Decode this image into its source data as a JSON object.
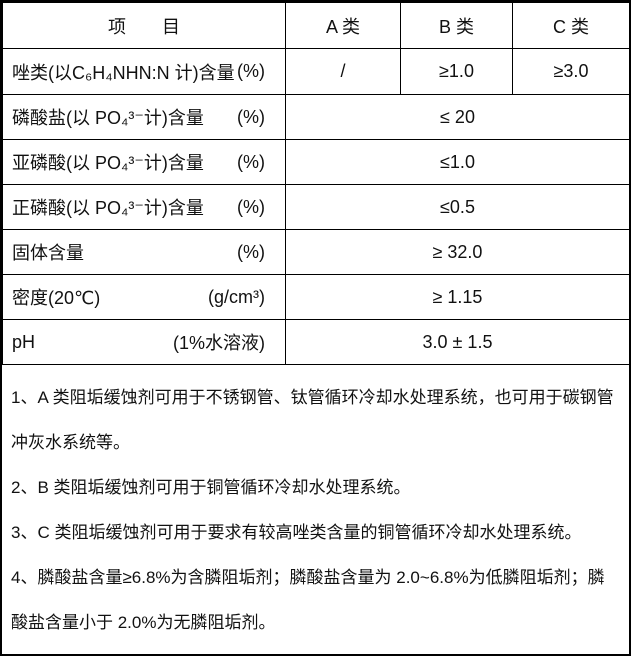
{
  "table": {
    "header": {
      "item": "项　　目",
      "class_a": "A 类",
      "class_b": "B 类",
      "class_c": "C 类"
    },
    "rows": [
      {
        "label": "唑类(以C₆H₄NHN:N 计)含量",
        "unit": "(%)",
        "value_a": "/",
        "value_b": "≥1.0",
        "value_c": "≥3.0"
      },
      {
        "label": "磷酸盐(以 PO₄³⁻计)含量",
        "unit": "(%)",
        "merged_value": "≤ 20"
      },
      {
        "label": "亚磷酸(以 PO₄³⁻计)含量",
        "unit": "(%)",
        "merged_value": "≤1.0"
      },
      {
        "label": "正磷酸(以 PO₄³⁻计)含量",
        "unit": "(%)",
        "merged_value": "≤0.5"
      },
      {
        "label": "固体含量",
        "unit": "(%)",
        "merged_value": "≥ 32.0"
      },
      {
        "label": "密度(20℃)",
        "unit": "(g/cm³)",
        "merged_value": "≥ 1.15"
      },
      {
        "label": "pH",
        "unit": "(1%水溶液)",
        "merged_value": "3.0 ± 1.5"
      }
    ]
  },
  "notes": [
    "1、A 类阻垢缓蚀剂可用于不锈钢管、钛管循环冷却水处理系统，也可用于碳钢管冲灰水系统等。",
    "2、B 类阻垢缓蚀剂可用于铜管循环冷却水处理系统。",
    "3、C 类阻垢缓蚀剂可用于要求有较高唑类含量的铜管循环冷却水处理系统。",
    "4、膦酸盐含量≥6.8%为含膦阻垢剂；膦酸盐含量为 2.0~6.8%为低膦阻垢剂；膦酸盐含量小于 2.0%为无膦阻垢剂。"
  ],
  "colors": {
    "border": "#000000",
    "text": "#111111",
    "background": "#ffffff"
  }
}
